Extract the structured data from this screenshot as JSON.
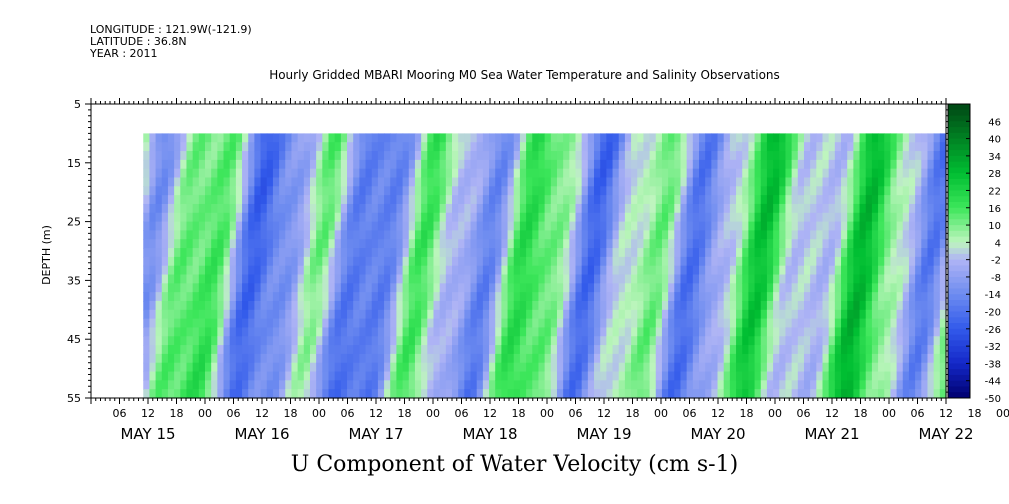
{
  "header": {
    "longitude": "LONGITUDE : 121.9W(-121.9)",
    "latitude": "LATITUDE : 36.8N",
    "year": "YEAR : 2011"
  },
  "chart_data": {
    "type": "heatmap",
    "title": "Hourly Gridded MBARI Mooring M0 Sea Water Temperature and Salinity Observations",
    "xlabel": "U Component of Water Velocity (cm s-1)",
    "ylabel": "DEPTH (m)",
    "y_range": [
      5,
      55
    ],
    "y_inverted": true,
    "y_ticks": [
      5,
      15,
      25,
      35,
      45,
      55
    ],
    "data_depth_range": [
      10,
      55
    ],
    "x_start": "2011-05-15T00:00",
    "x_end": "2011-05-22T12:00",
    "data_x_start": "2011-05-15T11:00",
    "hour_tick_labels": [
      "06",
      "12",
      "18",
      "00",
      "06",
      "12",
      "18",
      "00",
      "06",
      "12",
      "18",
      "00",
      "06",
      "12",
      "18",
      "00",
      "06",
      "12",
      "18",
      "00",
      "06",
      "12",
      "18",
      "00",
      "06",
      "12",
      "18",
      "00",
      "06",
      "12",
      "18",
      "00"
    ],
    "day_labels": [
      "MAY 15",
      "MAY 16",
      "MAY 17",
      "MAY 18",
      "MAY 19",
      "MAY 20",
      "MAY 21",
      "MAY 22"
    ],
    "colorbar_levels": [
      "46",
      "40",
      "34",
      "28",
      "22",
      "16",
      "10",
      "4",
      "-2",
      "-8",
      "-14",
      "-20",
      "-26",
      "-32",
      "-38",
      "-44",
      "-50"
    ],
    "colorbar_range": [
      -50,
      52
    ],
    "grid": false,
    "colorbar_placement": "right"
  }
}
